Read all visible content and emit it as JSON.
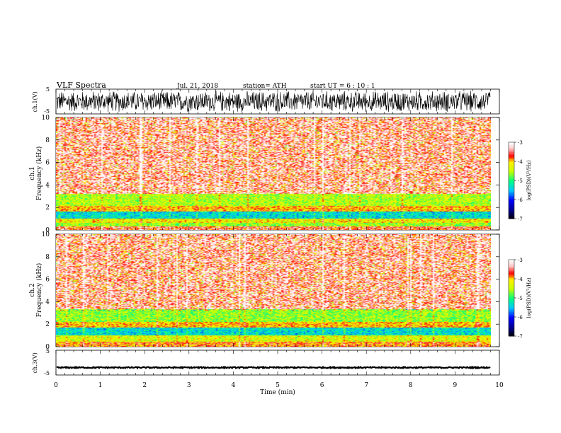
{
  "header": {
    "title": "VLF  Spectra",
    "date": "Jul.  21,  2018",
    "station": "station= ATH",
    "start": "start  UT  =   6  : 10 : 1"
  },
  "colors": {
    "background": "#ffffff",
    "trace": "#000000",
    "colormap": [
      "#000000",
      "#0000ff",
      "#00c8ff",
      "#00ff80",
      "#c8ff00",
      "#ffff00",
      "#ff0000",
      "#ffd0d0",
      "#ffffff"
    ]
  },
  "chart_data": [
    {
      "type": "line",
      "panel": "ch1-waveform",
      "ylabel": "ch.1(V)",
      "yticks": [
        "5",
        "-5"
      ],
      "ylim": [
        -5,
        5
      ],
      "xlim": [
        0,
        10
      ],
      "series": [
        {
          "description": "dense oscillating waveform",
          "amplitude": 4.8
        }
      ]
    },
    {
      "type": "heatmap",
      "panel": "ch1-spectrogram",
      "ylabel": "ch.1\nFrequency  (kHz)",
      "yticks": [
        "0",
        "2",
        "4",
        "6",
        "8",
        "10"
      ],
      "ylim": [
        0,
        10
      ],
      "xlim": [
        0,
        9.8
      ],
      "bands_khz": [
        {
          "range": [
            0,
            0.3
          ],
          "level": -3.6
        },
        {
          "range": [
            0.3,
            0.6
          ],
          "level": -4.6
        },
        {
          "range": [
            0.6,
            1.0
          ],
          "level": -4.2
        },
        {
          "range": [
            1.0,
            1.6
          ],
          "level": -5.3
        },
        {
          "range": [
            1.6,
            2.1
          ],
          "level": -4.0
        },
        {
          "range": [
            2.1,
            3.2
          ],
          "level": -4.5
        },
        {
          "range": [
            3.2,
            10
          ],
          "level": -3.5
        }
      ],
      "colorbar": {
        "label": "log(PSD)(V²/Hz)",
        "ticks": [
          "-3",
          "-4",
          "-5",
          "-6",
          "-7"
        ],
        "range": [
          -7,
          -3
        ]
      }
    },
    {
      "type": "heatmap",
      "panel": "ch2-spectrogram",
      "ylabel": "ch.2\nFrequency  (kHz)",
      "yticks": [
        "0",
        "2",
        "4",
        "6",
        "8",
        "10"
      ],
      "ylim": [
        0,
        10
      ],
      "xlim": [
        0,
        9.8
      ],
      "bands_khz": [
        {
          "range": [
            0,
            0.4
          ],
          "level": -3.8
        },
        {
          "range": [
            0.4,
            1.0
          ],
          "level": -4.3
        },
        {
          "range": [
            1.0,
            1.7
          ],
          "level": -5.3
        },
        {
          "range": [
            1.7,
            2.2
          ],
          "level": -4.0
        },
        {
          "range": [
            2.2,
            3.3
          ],
          "level": -4.6
        },
        {
          "range": [
            3.3,
            10
          ],
          "level": -3.5
        }
      ],
      "colorbar": {
        "label": "log(PSD)(V²/Hz)",
        "ticks": [
          "-3",
          "-4",
          "-5",
          "-6",
          "-7"
        ],
        "range": [
          -7,
          -3
        ]
      }
    },
    {
      "type": "line",
      "panel": "ch3-waveform",
      "ylabel": "ch.3(V)",
      "yticks": [
        "5",
        "-5"
      ],
      "ylim": [
        -5,
        5
      ],
      "xlim": [
        0,
        10
      ],
      "series": [
        {
          "description": "near-constant trace",
          "value": -2.0
        }
      ]
    }
  ],
  "xaxis": {
    "label": "Time  (min)",
    "ticks": [
      "0",
      "1",
      "2",
      "3",
      "4",
      "5",
      "6",
      "7",
      "8",
      "9",
      "10"
    ],
    "range": [
      0,
      10
    ]
  }
}
